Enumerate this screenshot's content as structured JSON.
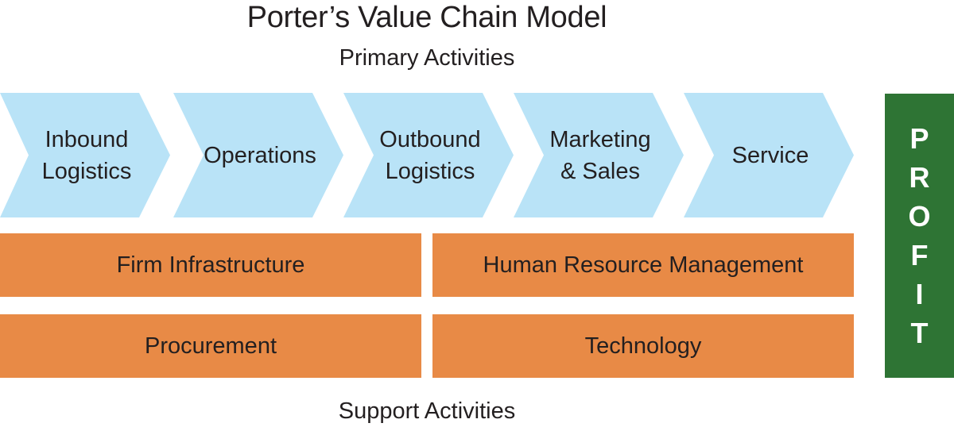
{
  "title": "Porter’s Value Chain Model",
  "primary_label": "Primary Activities",
  "support_label": "Support Activities",
  "primary_activities": [
    "Inbound\nLogistics",
    "Operations",
    "Outbound\nLogistics",
    "Marketing\n& Sales",
    "Service"
  ],
  "support_activities": {
    "firm_infrastructure": "Firm Infrastructure",
    "human_resource_management": "Human Resource Management",
    "procurement": "Procurement",
    "technology": "Technology"
  },
  "profit_letters": [
    "P",
    "R",
    "O",
    "F",
    "I",
    "T"
  ],
  "colors": {
    "primary_fill": "#b9e3f7",
    "support_fill": "#e88a46",
    "profit_fill": "#2e7434",
    "text": "#231f20"
  }
}
